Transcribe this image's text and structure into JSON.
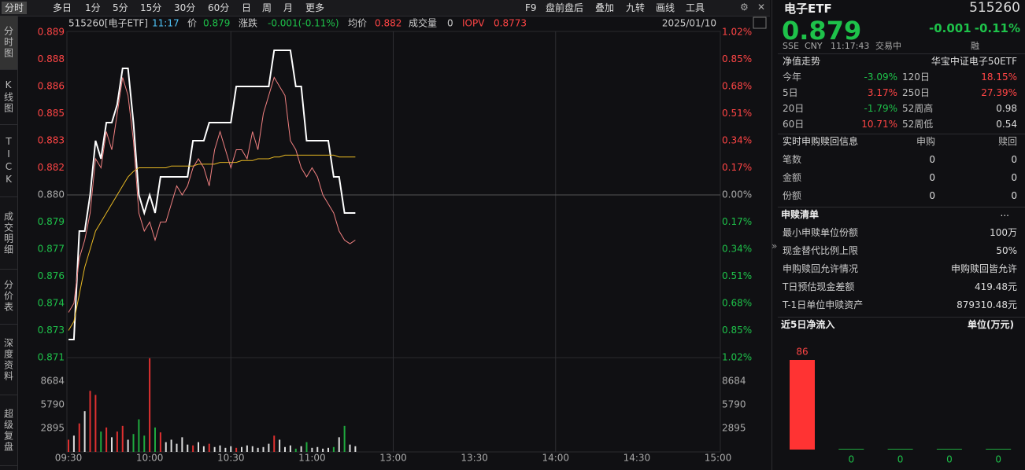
{
  "toolbar": {
    "left": [
      "分时",
      "多日",
      "1分",
      "5分",
      "15分",
      "30分",
      "60分",
      "日",
      "周",
      "月",
      "更多"
    ],
    "right": [
      "F9",
      "盘前盘后",
      "叠加",
      "九转",
      "画线",
      "工具"
    ]
  },
  "side_tabs": [
    "分时图",
    "K线图",
    "TICK",
    "成交明细",
    "分价表",
    "深度资料",
    "超级复盘"
  ],
  "chart_header": {
    "symbol": "515260[电子ETF]",
    "time": "11:17",
    "price": "0.879",
    "change_label": "涨跌",
    "change": "-0.001(-0.11%)",
    "avg": "0.882",
    "volume_label": "成交量",
    "volume": "0",
    "iopv": "0.8773",
    "date": "2025/01/10"
  },
  "chart_data": [
    {
      "type": "line",
      "x": [
        0,
        2,
        4,
        6,
        8,
        10,
        12,
        14,
        16,
        18,
        20,
        22,
        24,
        26,
        28,
        30,
        32,
        34,
        36,
        38,
        40,
        42,
        44,
        46,
        48,
        50,
        52,
        54,
        56,
        58,
        60,
        62,
        64,
        66,
        68,
        70,
        72,
        74,
        76,
        78,
        80,
        82,
        84,
        86,
        88,
        90,
        92,
        94,
        96,
        98,
        100,
        102,
        104,
        106
      ],
      "xlim": [
        0,
        240
      ],
      "xticks": [
        {
          "value": 0,
          "label": "09:30"
        },
        {
          "value": 30,
          "label": "10:00"
        },
        {
          "value": 60,
          "label": "10:30"
        },
        {
          "value": 90,
          "label": "11:00"
        },
        {
          "value": 120,
          "label": "13:00"
        },
        {
          "value": 150,
          "label": "13:30"
        },
        {
          "value": 180,
          "label": "14:00"
        },
        {
          "value": 210,
          "label": "14:30"
        },
        {
          "value": 240,
          "label": "15:00"
        }
      ],
      "ylim": [
        0.871,
        0.889
      ],
      "yticks": [
        0.889,
        {
          "value": 0.8875,
          "label": "0.888"
        },
        0.886,
        {
          "value": 0.8845,
          "label": "0.885"
        },
        0.883,
        {
          "value": 0.8815,
          "label": "0.882"
        },
        {
          "value": 0.88,
          "label": "0.880"
        },
        {
          "value": 0.8785,
          "label": "0.879"
        },
        0.877,
        {
          "value": 0.8755,
          "label": "0.876"
        },
        0.874,
        {
          "value": 0.8725,
          "label": "0.873"
        },
        0.871
      ],
      "y2lim": [
        -1.02,
        1.02
      ],
      "y2ticks": [
        {
          "value": 1.02,
          "label": "1.02%"
        },
        {
          "value": 0.85,
          "label": "0.85%"
        },
        {
          "value": 0.68,
          "label": "0.68%"
        },
        {
          "value": 0.51,
          "label": "0.51%"
        },
        {
          "value": 0.34,
          "label": "0.34%"
        },
        {
          "value": 0.17,
          "label": "0.17%"
        },
        {
          "value": 0,
          "label": "0.00%"
        },
        {
          "value": -0.17,
          "label": "0.17%"
        },
        {
          "value": -0.34,
          "label": "0.34%"
        },
        {
          "value": -0.51,
          "label": "0.51%"
        },
        {
          "value": -0.68,
          "label": "0.68%"
        },
        {
          "value": -0.85,
          "label": "0.85%"
        },
        {
          "value": -1.02,
          "label": "1.02%"
        }
      ],
      "series": [
        {
          "name": "价",
          "color": "#ffffff",
          "values": [
            0.872,
            0.872,
            0.878,
            0.878,
            0.88,
            0.883,
            0.882,
            0.884,
            0.884,
            0.885,
            0.887,
            0.887,
            0.884,
            0.88,
            0.879,
            0.88,
            0.879,
            0.881,
            0.881,
            0.881,
            0.881,
            0.881,
            0.881,
            0.883,
            0.883,
            0.883,
            0.884,
            0.884,
            0.884,
            0.884,
            0.884,
            0.886,
            0.886,
            0.886,
            0.886,
            0.886,
            0.886,
            0.886,
            0.888,
            0.888,
            0.888,
            0.888,
            0.886,
            0.886,
            0.883,
            0.883,
            0.883,
            0.883,
            0.883,
            0.881,
            0.881,
            0.879,
            0.879,
            0.879
          ]
        },
        {
          "name": "均价",
          "color": "#e8b923",
          "values": [
            0.8725,
            0.873,
            0.8745,
            0.876,
            0.877,
            0.878,
            0.8785,
            0.879,
            0.8795,
            0.88,
            0.8805,
            0.881,
            0.8813,
            0.8815,
            0.8815,
            0.8815,
            0.8815,
            0.8815,
            0.8815,
            0.8816,
            0.8816,
            0.8816,
            0.8816,
            0.8816,
            0.8817,
            0.8817,
            0.8817,
            0.8817,
            0.8818,
            0.8818,
            0.8818,
            0.8818,
            0.8819,
            0.8819,
            0.8819,
            0.882,
            0.882,
            0.882,
            0.8821,
            0.8821,
            0.8822,
            0.8822,
            0.8822,
            0.8822,
            0.8822,
            0.8822,
            0.8822,
            0.8822,
            0.8822,
            0.8822,
            0.8821,
            0.8821,
            0.8821,
            0.8821
          ]
        },
        {
          "name": "IOPV",
          "color": "#f08080",
          "values": [
            0.8735,
            0.874,
            0.8765,
            0.8775,
            0.879,
            0.882,
            0.8815,
            0.8835,
            0.8825,
            0.8845,
            0.8865,
            0.8855,
            0.883,
            0.879,
            0.878,
            0.8785,
            0.8775,
            0.8785,
            0.8785,
            0.8795,
            0.8805,
            0.88,
            0.8805,
            0.8815,
            0.882,
            0.8815,
            0.8805,
            0.8825,
            0.8835,
            0.8825,
            0.8815,
            0.8825,
            0.8825,
            0.882,
            0.8835,
            0.8825,
            0.8845,
            0.8855,
            0.8865,
            0.886,
            0.8855,
            0.883,
            0.8825,
            0.8815,
            0.881,
            0.8815,
            0.881,
            0.88,
            0.8795,
            0.879,
            0.878,
            0.8775,
            0.8773,
            0.8775
          ]
        }
      ]
    },
    {
      "type": "bar",
      "x": [
        0,
        2,
        4,
        6,
        8,
        10,
        12,
        14,
        16,
        18,
        20,
        22,
        24,
        26,
        28,
        30,
        32,
        34,
        36,
        38,
        40,
        42,
        44,
        46,
        48,
        50,
        52,
        54,
        56,
        58,
        60,
        62,
        64,
        66,
        68,
        70,
        72,
        74,
        76,
        78,
        80,
        82,
        84,
        86,
        88,
        90,
        92,
        94,
        96,
        98,
        100,
        102,
        104,
        106
      ],
      "values": [
        1500,
        2000,
        3500,
        5000,
        7500,
        7000,
        2500,
        3000,
        1800,
        2500,
        3200,
        1500,
        2200,
        4000,
        2000,
        11500,
        3000,
        2400,
        1200,
        1500,
        1000,
        1800,
        900,
        800,
        1200,
        700,
        1000,
        600,
        800,
        500,
        700,
        500,
        600,
        800,
        700,
        500,
        600,
        1000,
        2000,
        1500,
        600,
        800,
        400,
        700,
        1200,
        500,
        600,
        400,
        500,
        600,
        1800,
        3200,
        900,
        700
      ],
      "ylim": [
        0,
        11579
      ],
      "yticks": [
        2895,
        5790,
        8684
      ]
    },
    {
      "type": "bar",
      "title": "近5日净流入",
      "unit": "单位(万元)",
      "categories": [
        null,
        null,
        null,
        null,
        null
      ],
      "values": [
        86,
        0,
        0,
        0,
        0
      ],
      "color": "#ff3333"
    }
  ],
  "quote": {
    "name": "电子ETF",
    "code": "515260",
    "price": "0.879",
    "change": "-0.001",
    "change_pct": "-0.11%",
    "exchange": "SSE",
    "currency": "CNY",
    "time": "11:17:43",
    "status": "交易中",
    "tag": "融"
  },
  "nav": {
    "title": "净值走势",
    "index": "华宝中证电子50ETF",
    "rows": [
      [
        "今年",
        "-3.09%",
        "120日",
        "18.15%"
      ],
      [
        "5日",
        "3.17%",
        "250日",
        "27.39%"
      ],
      [
        "20日",
        "-1.79%",
        "52周高",
        "0.98"
      ],
      [
        "60日",
        "10.71%",
        "52周低",
        "0.54"
      ]
    ]
  },
  "realtime": {
    "title": "实时申购赎回信息",
    "headers": [
      "申购",
      "赎回"
    ],
    "rows": [
      [
        "笔数",
        "0",
        "0"
      ],
      [
        "金额",
        "0",
        "0"
      ],
      [
        "份额",
        "0",
        "0"
      ]
    ]
  },
  "redemption_list": {
    "title": "申赎清单",
    "more": "...",
    "rows": [
      [
        "最小申赎单位份额",
        "100万"
      ],
      [
        "现金替代比例上限",
        "50%"
      ],
      [
        "申购赎回允许情况",
        "申购赎回皆允许"
      ],
      [
        "T日预估现金差额",
        "419.48元"
      ],
      [
        "T-1日单位申赎资产",
        "879310.48元"
      ]
    ]
  }
}
